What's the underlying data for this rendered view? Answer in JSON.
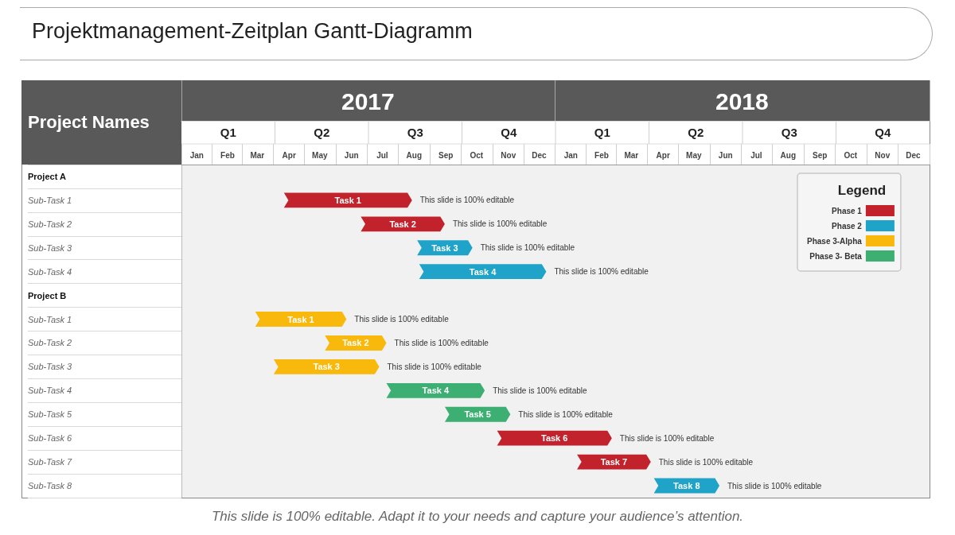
{
  "chart_data": {
    "type": "bar",
    "orientation": "horizontal",
    "title": "Projektmanagement-Zeitplan Gantt-Diagramm",
    "ylabel": "Project Names",
    "legend_title": "Legend",
    "legend": "top right",
    "categories": [
      "Project A",
      "Sub-Task 1",
      "Sub-Task 2",
      "Sub-Task 3",
      "Sub-Task 4",
      "Project B",
      "Sub-Task 1",
      "Sub-Task 2",
      "Sub-Task 3",
      "Sub-Task 4",
      "Sub-Task 5",
      "Sub-Task 6",
      "Sub-Task 7",
      "Sub-Task 8"
    ],
    "xlim": [
      "2017-01-01",
      "2019-01-01"
    ],
    "xticks": [
      {
        "value": "2017-01-16",
        "label": "Jan"
      },
      {
        "value": "2017-02-15",
        "label": "Feb"
      },
      {
        "value": "2017-03-16",
        "label": "Mar"
      },
      {
        "value": "2017-04-16",
        "label": "Apr"
      },
      {
        "value": "2017-05-16",
        "label": "May"
      },
      {
        "value": "2017-06-16",
        "label": "Jun"
      },
      {
        "value": "2017-07-16",
        "label": "Jul"
      },
      {
        "value": "2017-08-16",
        "label": "Aug"
      },
      {
        "value": "2017-09-16",
        "label": "Sep"
      },
      {
        "value": "2017-10-16",
        "label": "Oct"
      },
      {
        "value": "2017-11-16",
        "label": "Nov"
      },
      {
        "value": "2017-12-16",
        "label": "Dec"
      },
      {
        "value": "2018-01-16",
        "label": "Jan"
      },
      {
        "value": "2018-02-15",
        "label": "Feb"
      },
      {
        "value": "2018-03-16",
        "label": "Mar"
      },
      {
        "value": "2018-04-16",
        "label": "Apr"
      },
      {
        "value": "2018-05-16",
        "label": "May"
      },
      {
        "value": "2018-06-16",
        "label": "Jun"
      },
      {
        "value": "2018-07-16",
        "label": "Jul"
      },
      {
        "value": "2018-08-16",
        "label": "Aug"
      },
      {
        "value": "2018-09-16",
        "label": "Sep"
      },
      {
        "value": "2018-10-16",
        "label": "Oct"
      },
      {
        "value": "2018-11-16",
        "label": "Nov"
      },
      {
        "value": "2018-12-16",
        "label": "Dec"
      }
    ],
    "x2lim": [
      "2017-01-01",
      "2019-01-01"
    ],
    "x2ticks": [
      {
        "value": "2017-07-02",
        "label": "2017"
      },
      {
        "value": "2018-07-02",
        "label": "2018"
      }
    ],
    "series": [
      {
        "name": "Phase 1",
        "color": "#c1222b",
        "values": [
          null,
          125,
          82,
          null,
          null,
          null,
          null,
          null,
          null,
          null,
          null,
          112,
          72,
          null
        ],
        "base": [
          null,
          17267,
          17342,
          null,
          null,
          null,
          null,
          null,
          null,
          null,
          null,
          17475,
          17553,
          null
        ],
        "value_labels": [
          null,
          "Task 1",
          "Task 2",
          null,
          null,
          null,
          null,
          null,
          null,
          null,
          null,
          "Task 6",
          "Task 7",
          null
        ]
      },
      {
        "name": "Phase 2",
        "color": "#1fa3c8",
        "values": [
          null,
          null,
          null,
          54,
          124,
          null,
          null,
          null,
          null,
          null,
          null,
          null,
          null,
          64
        ],
        "base": [
          null,
          null,
          null,
          17397,
          17399,
          null,
          null,
          null,
          null,
          null,
          null,
          null,
          null,
          17628
        ],
        "value_labels": [
          null,
          null,
          null,
          "Task 3",
          "Task 4",
          null,
          null,
          null,
          null,
          null,
          null,
          null,
          null,
          "Task 8"
        ]
      },
      {
        "name": "Phase 3-Alpha",
        "color": "#f9b80c",
        "values": [
          null,
          null,
          null,
          null,
          null,
          null,
          89,
          60,
          103,
          null,
          null,
          null,
          null,
          null
        ],
        "base": [
          null,
          null,
          null,
          null,
          null,
          null,
          17239,
          17307,
          17257,
          null,
          null,
          null,
          null,
          null
        ],
        "value_labels": [
          null,
          null,
          null,
          null,
          null,
          null,
          "Task 1",
          "Task 2",
          "Task 3",
          null,
          null,
          null,
          null,
          null
        ]
      },
      {
        "name": "Phase 3- Beta",
        "color": "#3daf72",
        "values": [
          null,
          null,
          null,
          null,
          null,
          null,
          null,
          null,
          null,
          96,
          64,
          null,
          null,
          null
        ],
        "base": [
          null,
          null,
          null,
          null,
          null,
          null,
          null,
          null,
          null,
          17367,
          17424,
          null,
          null,
          null
        ],
        "value_labels": [
          null,
          null,
          null,
          null,
          null,
          null,
          null,
          null,
          null,
          "Task 4",
          "Task 5",
          null,
          null,
          null
        ]
      }
    ],
    "annotations": [
      "Q1",
      "Q2",
      "Q3",
      "Q4",
      "Q1",
      "Q2",
      "Q3",
      "Q4",
      "This slide is 100% editable",
      "This slide is 100% editable",
      "This slide is 100% editable",
      "This slide is 100% editable",
      "This slide is 100% editable",
      "This slide is 100% editable",
      "This slide is 100% editable",
      "This slide is 100% editable",
      "This slide is 100% editable",
      "This slide is 100% editable",
      "This slide is 100% editable",
      "This slide is 100% editable",
      "This slide is 100% editable. Adapt it to your needs and capture your audience’s attention."
    ]
  }
}
